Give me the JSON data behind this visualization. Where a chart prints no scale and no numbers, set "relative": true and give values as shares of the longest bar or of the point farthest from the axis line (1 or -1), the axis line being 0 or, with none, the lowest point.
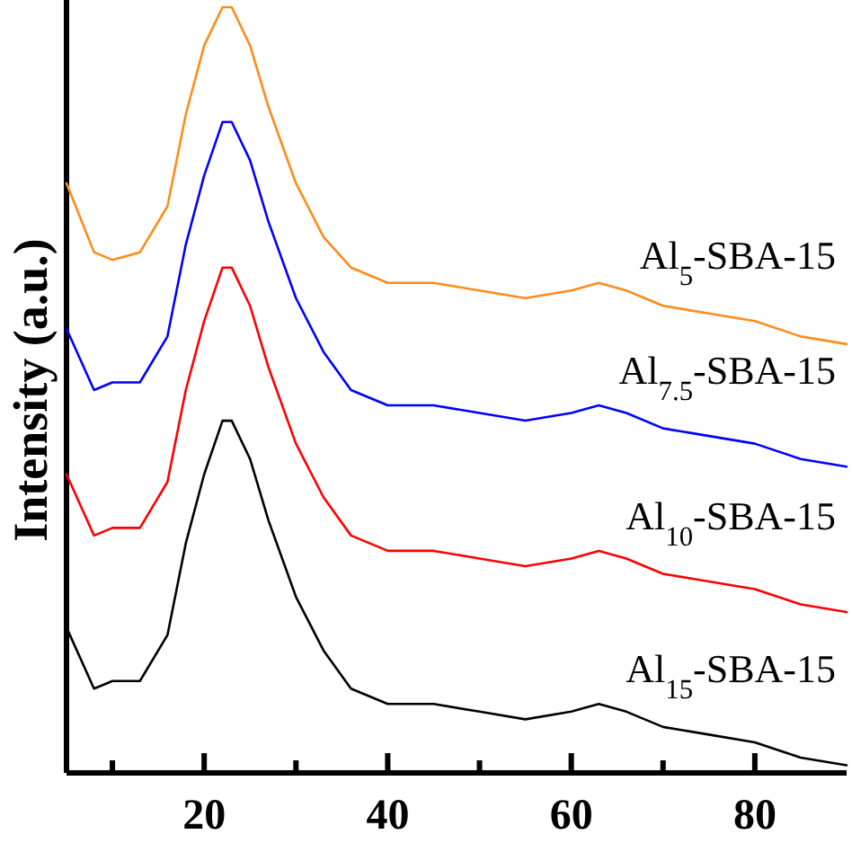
{
  "chart_data": {
    "type": "line",
    "ylabel": "Intensity (a.u.)",
    "relative": true,
    "x": [
      5,
      8,
      10,
      13,
      16,
      18,
      20,
      22,
      23,
      25,
      27,
      30,
      33,
      36,
      40,
      45,
      50,
      55,
      60,
      63,
      66,
      70,
      75,
      80,
      85,
      90
    ],
    "xlim": [
      5,
      90
    ],
    "xticks": [
      {
        "value": 10,
        "label": null
      },
      20,
      {
        "value": 30,
        "label": null
      },
      40,
      {
        "value": 50,
        "label": null
      },
      60,
      {
        "value": 70,
        "label": null
      },
      80
    ],
    "series": [
      {
        "name": "Al$_{5}$-SBA-15",
        "color": "#ff8c1a",
        "values": [
          0.77,
          0.68,
          0.67,
          0.68,
          0.74,
          0.86,
          0.95,
          1.0,
          1.0,
          0.95,
          0.87,
          0.77,
          0.7,
          0.66,
          0.64,
          0.64,
          0.63,
          0.62,
          0.63,
          0.64,
          0.63,
          0.61,
          0.6,
          0.59,
          0.57,
          0.56
        ]
      },
      {
        "name": "Al$_{7.5}$-SBA-15",
        "color": "#0000ff",
        "values": [
          0.58,
          0.5,
          0.51,
          0.51,
          0.57,
          0.69,
          0.78,
          0.85,
          0.85,
          0.8,
          0.72,
          0.62,
          0.55,
          0.5,
          0.48,
          0.48,
          0.47,
          0.46,
          0.47,
          0.48,
          0.47,
          0.45,
          0.44,
          0.43,
          0.41,
          0.4
        ]
      },
      {
        "name": "Al$_{10}$-SBA-15",
        "color": "#ff0000",
        "values": [
          0.39,
          0.31,
          0.32,
          0.32,
          0.38,
          0.5,
          0.59,
          0.66,
          0.66,
          0.61,
          0.53,
          0.43,
          0.36,
          0.31,
          0.29,
          0.29,
          0.28,
          0.27,
          0.28,
          0.29,
          0.28,
          0.26,
          0.25,
          0.24,
          0.22,
          0.21
        ]
      },
      {
        "name": "Al$_{15}$-SBA-15",
        "color": "#000000",
        "values": [
          0.19,
          0.11,
          0.12,
          0.12,
          0.18,
          0.3,
          0.39,
          0.46,
          0.46,
          0.41,
          0.33,
          0.23,
          0.16,
          0.11,
          0.09,
          0.09,
          0.08,
          0.07,
          0.08,
          0.09,
          0.08,
          0.06,
          0.05,
          0.04,
          0.02,
          0.01
        ]
      }
    ]
  }
}
